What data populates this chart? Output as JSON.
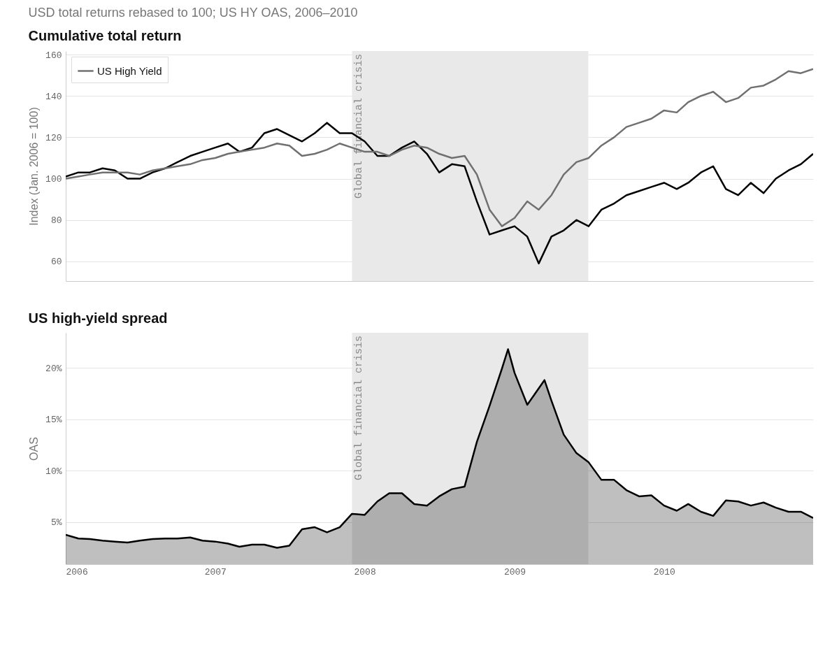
{
  "chart_data": [
    {
      "type": "line",
      "title": "Cumulative total return",
      "subtitle": "USD total returns rebased to 100; US HY OAS, 2006–2010",
      "ylabel": "Index (Jan. 2006 = 100)",
      "x": [
        "2006-01",
        "2006-02",
        "2006-03",
        "2006-04",
        "2006-05",
        "2006-06",
        "2006-07",
        "2006-08",
        "2006-09",
        "2006-10",
        "2006-11",
        "2006-12",
        "2007-01",
        "2007-02",
        "2007-03",
        "2007-04",
        "2007-05",
        "2007-06",
        "2007-07",
        "2007-08",
        "2007-09",
        "2007-10",
        "2007-11",
        "2007-12",
        "2008-01",
        "2008-02",
        "2008-03",
        "2008-04",
        "2008-05",
        "2008-06",
        "2008-07",
        "2008-08",
        "2008-09",
        "2008-10",
        "2008-11",
        "2008-12",
        "2009-01",
        "2009-02",
        "2009-03",
        "2009-04",
        "2009-05",
        "2009-06",
        "2009-07",
        "2009-08",
        "2009-09",
        "2009-10",
        "2009-11",
        "2009-12",
        "2010-01",
        "2010-02",
        "2010-03",
        "2010-04",
        "2010-05",
        "2010-06",
        "2010-07",
        "2010-08",
        "2010-09",
        "2010-10",
        "2010-11",
        "2010-12",
        "2010-12-31"
      ],
      "series": [
        {
          "color": "#000000",
          "values": [
            101,
            103,
            103,
            105,
            104,
            100,
            100,
            103,
            105,
            108,
            111,
            113,
            115,
            117,
            113,
            115,
            122,
            124,
            121,
            118,
            122,
            127,
            122,
            122,
            118,
            111,
            111,
            115,
            118,
            112,
            103,
            107,
            106,
            89,
            73,
            75,
            77,
            72,
            59,
            72,
            75,
            80,
            77,
            85,
            88,
            92,
            94,
            96,
            98,
            95,
            98,
            103,
            106,
            95,
            92,
            98,
            93,
            100,
            104,
            107,
            112
          ]
        },
        {
          "name": "US High Yield",
          "color": "#707070",
          "values": [
            100,
            101,
            102,
            103,
            103,
            103,
            102,
            104,
            105,
            106,
            107,
            109,
            110,
            112,
            113,
            114,
            115,
            117,
            116,
            111,
            112,
            114,
            117,
            115,
            113,
            113,
            111,
            114,
            116,
            115,
            112,
            110,
            111,
            102,
            85,
            77,
            81,
            89,
            85,
            92,
            102,
            108,
            110,
            116,
            120,
            125,
            127,
            129,
            133,
            132,
            137,
            140,
            142,
            137,
            139,
            144,
            145,
            148,
            152,
            151,
            153
          ]
        }
      ],
      "xlim": [
        "2006-01",
        "2010-12-31"
      ],
      "ylim": [
        50.5,
        161.7
      ],
      "yticks": [
        60,
        80,
        100,
        120,
        140,
        160
      ],
      "tick_labels": "y",
      "grid": "y",
      "legend": "top left",
      "bands": [
        {
          "axis": "x",
          "from": "2007-12",
          "to": "2009-06-30",
          "label": "Global financial crisis",
          "color": "#e9e9e9"
        }
      ]
    },
    {
      "type": "area",
      "title": "US high-yield spread",
      "ylabel": "OAS",
      "series": [
        {
          "color": "#000000",
          "x": [
            "2006-01",
            "2006-02",
            "2006-03",
            "2006-04",
            "2006-05",
            "2006-06",
            "2006-07",
            "2006-08",
            "2006-09",
            "2006-10",
            "2006-11",
            "2006-12",
            "2007-01",
            "2007-02",
            "2007-03",
            "2007-04",
            "2007-05",
            "2007-06",
            "2007-07",
            "2007-08",
            "2007-09",
            "2007-10",
            "2007-11",
            "2007-12",
            "2008-01",
            "2008-02",
            "2008-03",
            "2008-04",
            "2008-05",
            "2008-06",
            "2008-07",
            "2008-08",
            "2008-09",
            "2008-10",
            "2008-11",
            "2008-12",
            "2008-12-16",
            "2009-01",
            "2009-02",
            "2009-03",
            "2009-03-15",
            "2009-04",
            "2009-05",
            "2009-06",
            "2009-07",
            "2009-08",
            "2009-09",
            "2009-10",
            "2009-11",
            "2009-12",
            "2010-01",
            "2010-02",
            "2010-03",
            "2010-04",
            "2010-05",
            "2010-06",
            "2010-07",
            "2010-08",
            "2010-09",
            "2010-10",
            "2010-11",
            "2010-12",
            "2010-12-31"
          ],
          "values": [
            3.75,
            3.4,
            3.35,
            3.2,
            3.1,
            3.0,
            3.2,
            3.35,
            3.4,
            3.4,
            3.5,
            3.2,
            3.1,
            2.9,
            2.6,
            2.8,
            2.8,
            2.5,
            2.7,
            4.3,
            4.5,
            4.0,
            4.5,
            5.8,
            5.7,
            7.0,
            7.8,
            7.8,
            6.75,
            6.6,
            7.5,
            8.2,
            8.45,
            12.8,
            16.3,
            19.9,
            21.8,
            19.5,
            16.4,
            18.0,
            18.8,
            16.8,
            13.5,
            11.7,
            10.8,
            9.1,
            9.1,
            8.1,
            7.5,
            7.6,
            6.6,
            6.1,
            6.75,
            6.0,
            5.6,
            7.1,
            7.0,
            6.6,
            6.9,
            6.4,
            6.0,
            6.0,
            5.4
          ]
        }
      ],
      "xlim": [
        "2006-01",
        "2010-12-31"
      ],
      "xticks": [
        {
          "value": "2006",
          "label": "2006"
        },
        {
          "value": "2007",
          "label": "2007"
        },
        {
          "value": "2008",
          "label": "2008"
        },
        {
          "value": "2009",
          "label": "2009"
        },
        {
          "value": "2010",
          "label": "2010"
        }
      ],
      "ylim": [
        0.9,
        23.4
      ],
      "yticks": [
        {
          "value": 5,
          "label": "5%"
        },
        {
          "value": 10,
          "label": "10%"
        },
        {
          "value": 15,
          "label": "15%"
        },
        {
          "value": 20,
          "label": "20%"
        }
      ],
      "grid": "y",
      "bands": [
        {
          "axis": "x",
          "from": "2007-12",
          "to": "2009-06-30",
          "label": "Global financial crisis",
          "color": "#e9e9e9"
        }
      ]
    }
  ]
}
